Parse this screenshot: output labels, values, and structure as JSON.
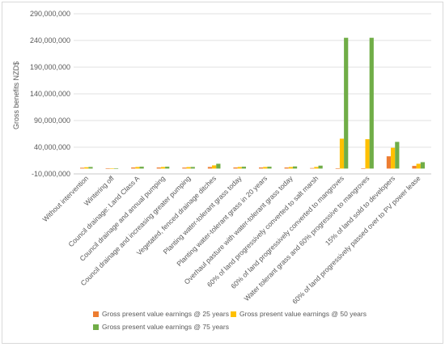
{
  "chart_data": {
    "type": "bar",
    "title": "",
    "xlabel": "",
    "ylabel": "Gross benefits NZD$",
    "ylim": [
      -10000000,
      290000000
    ],
    "yticks": [
      -10000000,
      40000000,
      90000000,
      140000000,
      190000000,
      240000000,
      290000000
    ],
    "ytick_labels": [
      "-10,000,000",
      "40,000,000",
      "90,000,000",
      "140,000,000",
      "190,000,000",
      "240,000,000",
      "290,000,000"
    ],
    "grid": true,
    "legend_position": "bottom",
    "categories": [
      "Without intervention",
      "Wintering off",
      "Council drainage: Land Class A",
      "Council drainage and annual pumping",
      "Council drainage and increasing greater pumping",
      "Vegetated, fenced  drainage ditches",
      "Planting water-tolerant grass today",
      "Planting water-tolerant grass in 20 years",
      "Overhaul pasture with water-tolerant grass today",
      "60% of land progressively converted to salt marsh",
      "60% of land progressively converted to mangroves",
      "Water tolerant grass and 60% progressive to mangroves",
      "15% of land sold to developers",
      "60% of land progressively passed over to PV power lease"
    ],
    "series": [
      {
        "name": "Gross present value earnings @ 25 years",
        "color": "#ed7d31",
        "values": [
          1500000,
          300000,
          2000000,
          2000000,
          1800000,
          3000000,
          2000000,
          2000000,
          2000000,
          1000000,
          500000,
          500000,
          23000000,
          5000000
        ]
      },
      {
        "name": "Gross present value earnings @ 50 years",
        "color": "#ffc000",
        "values": [
          2500000,
          500000,
          3000000,
          3000000,
          2800000,
          6000000,
          3000000,
          3000000,
          3000000,
          3000000,
          56000000,
          55000000,
          39000000,
          9000000
        ]
      },
      {
        "name": "Gross present value earnings @ 75 years",
        "color": "#70ad47",
        "values": [
          3000000,
          600000,
          3500000,
          3500000,
          3000000,
          9000000,
          3500000,
          3500000,
          4000000,
          5500000,
          245000000,
          245000000,
          50000000,
          12000000
        ]
      }
    ]
  }
}
